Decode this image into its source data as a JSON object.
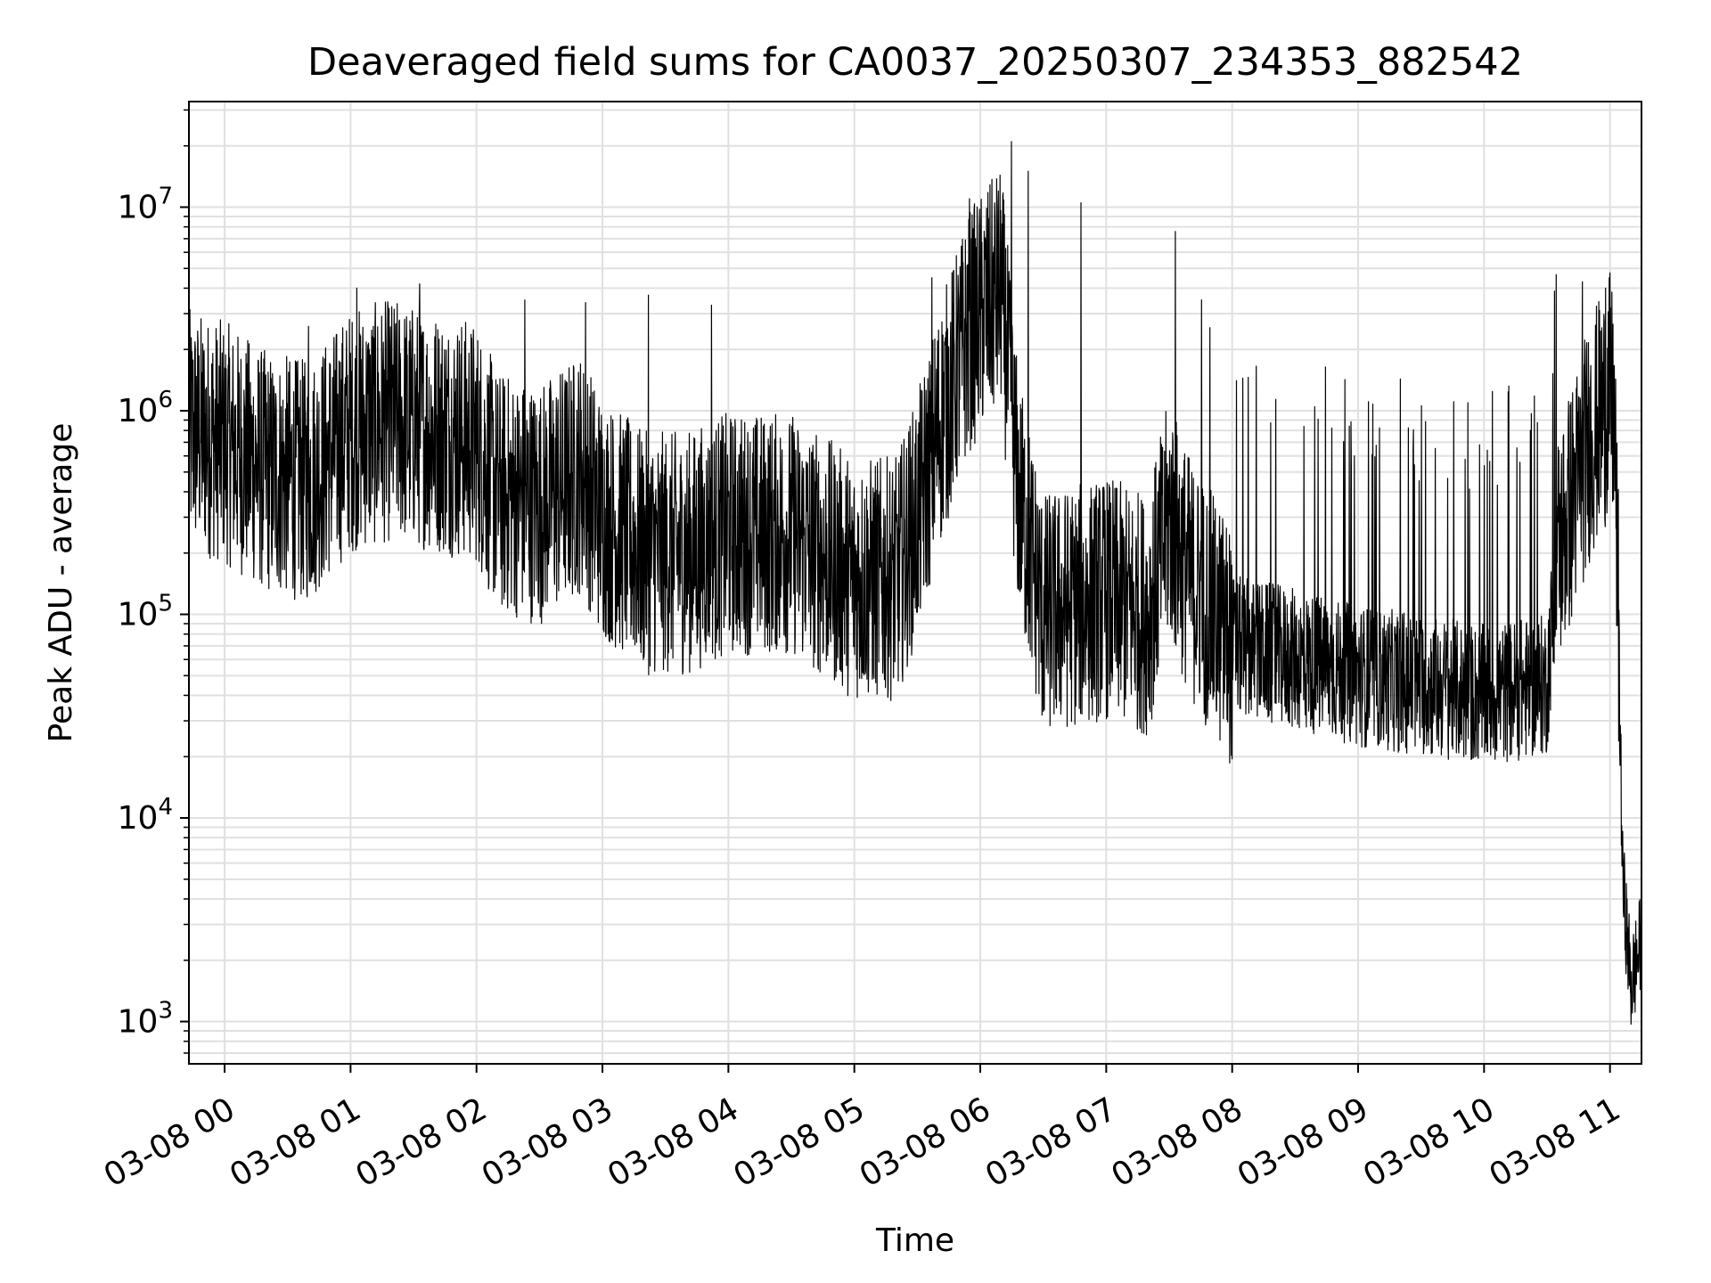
{
  "chart_data": {
    "type": "line",
    "title": "Deaveraged field sums for CA0037_20250307_234353_882542",
    "xlabel": "Time",
    "ylabel": "Peak ADU - average",
    "yscale": "log",
    "grid": true,
    "grid_minor": true,
    "line_color": "#000000",
    "grid_color": "#e0e0e0",
    "xlim": [
      "03-07 23:43",
      "03-08 11:15"
    ],
    "ylim": [
      620,
      33000000
    ],
    "x_ticks": [
      {
        "label": "03-08 00",
        "value": "03-08 00:00"
      },
      {
        "label": "03-08 01",
        "value": "03-08 01:00"
      },
      {
        "label": "03-08 02",
        "value": "03-08 02:00"
      },
      {
        "label": "03-08 03",
        "value": "03-08 03:00"
      },
      {
        "label": "03-08 04",
        "value": "03-08 04:00"
      },
      {
        "label": "03-08 05",
        "value": "03-08 05:00"
      },
      {
        "label": "03-08 06",
        "value": "03-08 06:00"
      },
      {
        "label": "03-08 07",
        "value": "03-08 07:00"
      },
      {
        "label": "03-08 08",
        "value": "03-08 08:00"
      },
      {
        "label": "03-08 09",
        "value": "03-08 09:00"
      },
      {
        "label": "03-08 10",
        "value": "03-08 10:00"
      },
      {
        "label": "03-08 11",
        "value": "03-08 11:00"
      }
    ],
    "y_ticks": [
      {
        "base": "10",
        "exp": "3",
        "value": 1000
      },
      {
        "base": "10",
        "exp": "4",
        "value": 10000
      },
      {
        "base": "10",
        "exp": "5",
        "value": 100000
      },
      {
        "base": "10",
        "exp": "6",
        "value": 1000000
      },
      {
        "base": "10",
        "exp": "7",
        "value": 10000000
      }
    ],
    "series": [
      {
        "baseline": [
          [
            "03-07 23:43",
            800000
          ],
          [
            "03-08 00:00",
            700000
          ],
          [
            "03-08 00:20",
            500000
          ],
          [
            "03-08 00:40",
            450000
          ],
          [
            "03-08 01:00",
            800000
          ],
          [
            "03-08 01:20",
            900000
          ],
          [
            "03-08 01:40",
            800000
          ],
          [
            "03-08 02:00",
            700000
          ],
          [
            "03-08 02:10",
            400000
          ],
          [
            "03-08 02:30",
            350000
          ],
          [
            "03-08 02:50",
            500000
          ],
          [
            "03-08 03:00",
            300000
          ],
          [
            "03-08 03:20",
            200000
          ],
          [
            "03-08 03:40",
            200000
          ],
          [
            "03-08 04:00",
            250000
          ],
          [
            "03-08 04:30",
            250000
          ],
          [
            "03-08 05:00",
            150000
          ],
          [
            "03-08 05:20",
            150000
          ],
          [
            "03-08 05:30",
            300000
          ],
          [
            "03-08 05:40",
            800000
          ],
          [
            "03-08 05:55",
            2500000
          ],
          [
            "03-08 06:10",
            4000000
          ],
          [
            "03-08 06:18",
            400000
          ],
          [
            "03-08 06:30",
            100000
          ],
          [
            "03-08 07:00",
            120000
          ],
          [
            "03-08 07:20",
            100000
          ],
          [
            "03-08 07:30",
            300000
          ],
          [
            "03-08 07:40",
            150000
          ],
          [
            "03-08 08:00",
            70000
          ],
          [
            "03-08 08:30",
            60000
          ],
          [
            "03-08 09:00",
            50000
          ],
          [
            "03-08 09:30",
            45000
          ],
          [
            "03-08 10:00",
            40000
          ],
          [
            "03-08 10:30",
            45000
          ],
          [
            "03-08 10:35",
            200000
          ],
          [
            "03-08 10:50",
            700000
          ],
          [
            "03-08 11:00",
            1200000
          ],
          [
            "03-08 11:02",
            900000
          ],
          [
            "03-08 11:04",
            100000
          ],
          [
            "03-08 11:06",
            5000
          ],
          [
            "03-08 11:10",
            1500
          ],
          [
            "03-08 11:15",
            2500
          ]
        ],
        "spikes": [
          [
            "03-08 00:40",
            2600000
          ],
          [
            "03-08 01:03",
            4000000
          ],
          [
            "03-08 01:33",
            4200000
          ],
          [
            "03-08 02:23",
            3500000
          ],
          [
            "03-08 02:52",
            3400000
          ],
          [
            "03-08 03:22",
            3700000
          ],
          [
            "03-08 03:52",
            3300000
          ],
          [
            "03-08 05:37",
            4500000
          ],
          [
            "03-08 05:55",
            11000000
          ],
          [
            "03-08 06:15",
            21000000
          ],
          [
            "03-08 06:23",
            15000000
          ],
          [
            "03-08 06:48",
            10500000
          ],
          [
            "03-08 07:33",
            7600000
          ],
          [
            "03-08 10:47",
            4300000
          ],
          [
            "03-08 10:58",
            4000000
          ]
        ]
      }
    ]
  }
}
